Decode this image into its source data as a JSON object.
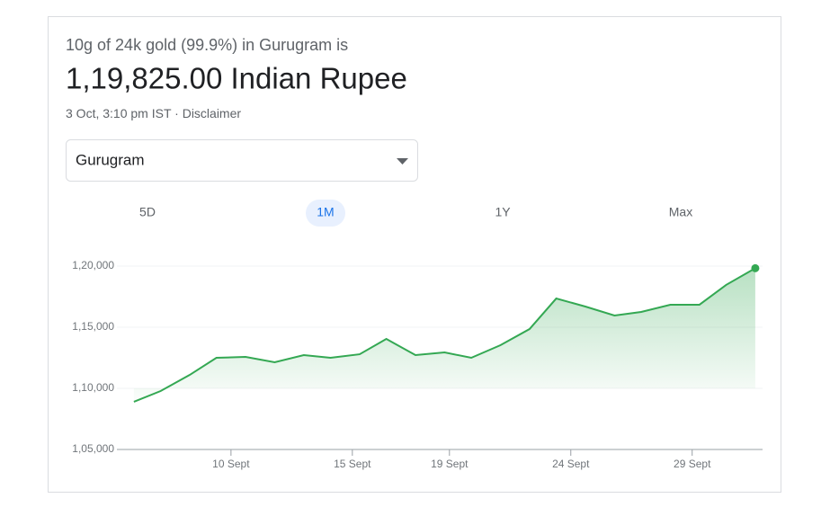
{
  "header": {
    "subtitle": "10g of 24k gold (99.9%) in Gurugram is",
    "price": "1,19,825.00 Indian Rupee",
    "timestamp": "3 Oct, 3:10 pm IST",
    "separator": "·",
    "disclaimer": "Disclaimer"
  },
  "dropdown": {
    "selected": "Gurugram"
  },
  "ranges": {
    "options": [
      "5D",
      "1M",
      "1Y",
      "Max"
    ],
    "selected": "1M"
  },
  "chart_data": {
    "type": "line",
    "color": "#34a853",
    "grid": true,
    "x": [
      6.0,
      7.1,
      8.3,
      9.4,
      10.6,
      11.8,
      13.0,
      14.1,
      15.3,
      16.4,
      17.6,
      18.8,
      19.9,
      21.1,
      22.3,
      23.4,
      24.6,
      25.8,
      26.9,
      28.1,
      29.3,
      30.4,
      31.6
    ],
    "values": [
      108900,
      109780,
      111100,
      112500,
      112570,
      112130,
      112720,
      112500,
      112790,
      114040,
      112720,
      112940,
      112500,
      113530,
      114850,
      117350,
      116690,
      115960,
      116250,
      116840,
      116840,
      118460,
      119825
    ],
    "xlim": [
      5.3,
      31.9
    ],
    "xticks": [
      {
        "value": 10,
        "label": "10 Sept"
      },
      {
        "value": 15,
        "label": "15 Sept"
      },
      {
        "value": 19,
        "label": "19 Sept"
      },
      {
        "value": 24,
        "label": "24 Sept"
      },
      {
        "value": 29,
        "label": "29 Sept"
      }
    ],
    "ylim": [
      105000,
      120000
    ],
    "yticks": [
      {
        "value": 105000,
        "label": "1,05,000"
      },
      {
        "value": 110000,
        "label": "1,10,000"
      },
      {
        "value": 115000,
        "label": "1,15,000"
      },
      {
        "value": 120000,
        "label": "1,20,000"
      }
    ]
  }
}
